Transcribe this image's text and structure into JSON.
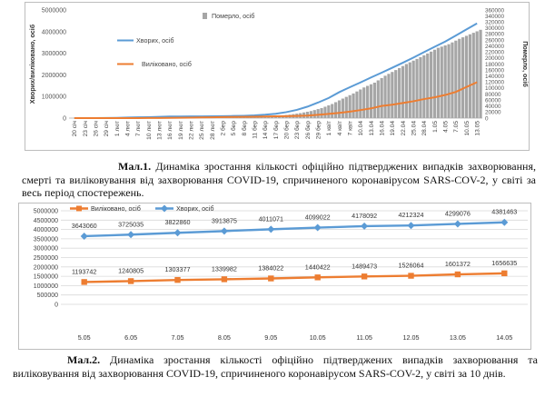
{
  "chart_data": [
    {
      "type": "bar+line",
      "title": "",
      "ylabel_left": "Хворих/виліковано, осіб",
      "ylabel_right": "Померло, осіб",
      "ylim_left": [
        0,
        5000000
      ],
      "yticks_left": [
        "0",
        "1000000",
        "2000000",
        "3000000",
        "4000000",
        "5000000"
      ],
      "ylim_right": [
        0,
        360000
      ],
      "yticks_right": [
        "0",
        "20000",
        "40000",
        "60000",
        "80000",
        "100000",
        "120000",
        "140000",
        "160000",
        "180000",
        "200000",
        "220000",
        "240000",
        "260000",
        "280000",
        "300000",
        "320000",
        "340000",
        "360000"
      ],
      "categories": [
        "20 січ",
        "23 січ",
        "26 січ",
        "29 січ",
        "1 лют",
        "4 лют",
        "7 лют",
        "10 лют",
        "13 лют",
        "16 лют",
        "19 лют",
        "22 лют",
        "25 лют",
        "28 лют",
        "2 бер",
        "5 бер",
        "8 бер",
        "11 бер",
        "14 бер",
        "17 бер",
        "20 бер",
        "23 бер",
        "26 бер",
        "29 бер",
        "1 квіт",
        "4 квіт",
        "7 квіт",
        "10.04",
        "13.04",
        "16.04",
        "19.04",
        "22.04",
        "25.04",
        "28.04",
        "1.05",
        "4.05",
        "7.05",
        "10.05",
        "13.05"
      ],
      "legend": [
        "Померло, осіб",
        "Хворих, осіб",
        "Виліковано, осіб"
      ],
      "series": [
        {
          "name": "Померло, осіб",
          "axis": "right",
          "color": "#a6a6a6",
          "values": [
            17,
            81,
            80,
            259,
            362,
            490,
            638,
            910,
            1368,
            1770,
            2122,
            2460,
            2700,
            2870,
            3110,
            3400,
            3800,
            4600,
            5800,
            8000,
            11500,
            16600,
            23500,
            33300,
            47000,
            65000,
            82000,
            102000,
            118000,
            141000,
            160000,
            180000,
            197000,
            215000,
            234000,
            246000,
            264000,
            279000,
            294000
          ]
        },
        {
          "name": "Хворих, осіб",
          "axis": "left",
          "color": "#5b9bd5",
          "values": [
            280,
            650,
            2100,
            6100,
            12000,
            24300,
            34800,
            43000,
            60000,
            73000,
            76000,
            78000,
            80400,
            84000,
            89000,
            98000,
            107000,
            126000,
            156000,
            200000,
            275000,
            380000,
            530000,
            720000,
            930000,
            1200000,
            1430000,
            1650000,
            1880000,
            2100000,
            2330000,
            2560000,
            2800000,
            3050000,
            3300000,
            3540000,
            3820000,
            4100000,
            4380000
          ]
        },
        {
          "name": "Виліковано, осіб",
          "axis": "left",
          "color": "#ed7d31",
          "values": [
            0,
            30,
            50,
            130,
            300,
            1000,
            2000,
            4700,
            7000,
            12500,
            17000,
            23000,
            29000,
            39000,
            45000,
            53000,
            59000,
            65000,
            73000,
            82000,
            90000,
            100000,
            117000,
            150000,
            193000,
            240000,
            300000,
            370000,
            450000,
            560000,
            620000,
            700000,
            780000,
            880000,
            960000,
            1070000,
            1210000,
            1440000,
            1660000
          ]
        }
      ]
    },
    {
      "type": "line",
      "title": "",
      "ylim": [
        0,
        5000000
      ],
      "yticks": [
        "0",
        "500000",
        "1000000",
        "1500000",
        "2000000",
        "2500000",
        "3000000",
        "3500000",
        "4000000",
        "4500000",
        "5000000"
      ],
      "categories": [
        "5.05",
        "6.05",
        "7.05",
        "8.05",
        "9.05",
        "10.05",
        "11.05",
        "12.05",
        "13.05",
        "14.05"
      ],
      "legend": [
        "Виліковано, осіб",
        "Хворих, осіб"
      ],
      "series": [
        {
          "name": "Виліковано, осіб",
          "color": "#ed7d31",
          "values": [
            1193742,
            1240805,
            1303377,
            1339982,
            1384022,
            1440422,
            1489473,
            1526064,
            1601372,
            1656635
          ],
          "labels": [
            "1193742",
            "1240805",
            "1303377",
            "1339982",
            "1384022",
            "1440422",
            "1489473",
            "1526064",
            "1601372",
            "1656635"
          ]
        },
        {
          "name": "Хворих, осіб",
          "color": "#5b9bd5",
          "values": [
            3643060,
            3725035,
            3822860,
            3913875,
            4011071,
            4099022,
            4178092,
            4212324,
            4299076,
            4381463
          ],
          "labels": [
            "3643060",
            "3725035",
            "3822860",
            "3913875",
            "4011071",
            "4099022",
            "4178092",
            "4212324",
            "4299076",
            "4381463"
          ]
        }
      ]
    }
  ],
  "caption1": {
    "label": "Мал.1.",
    "text": " Динаміка зростання кількості офіційно підтверджених випадків захворювання, смерті та виліковування від захворювання COVID-19, спричиненого коронавірусом SARS-COV-2, у світі за весь період спостережень."
  },
  "caption2": {
    "label": "Мал.2.",
    "text": " Динаміка зростання кількості офіційно підтверджених випадків захворювання та виліковування від захворювання COVID-19, спричиненого коронавірусом SARS-COV-2, у світі за 10 днів."
  }
}
